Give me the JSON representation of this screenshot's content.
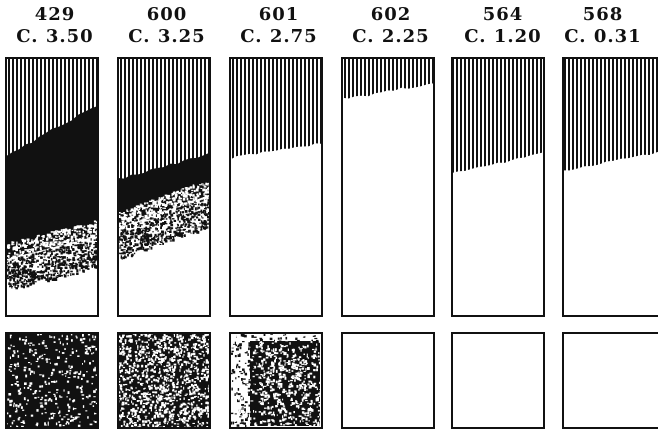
{
  "figure": {
    "colors": {
      "ink": "#111111",
      "paper": "#ffffff"
    },
    "columns": [
      {
        "number": "429",
        "code": "C. 3.50",
        "stripe_left": 0.38,
        "stripe_right": 0.18,
        "speckle_left": 0.78,
        "speckle_right": 0.69,
        "lower_box": "dark-speckled"
      },
      {
        "number": "600",
        "code": "C. 3.25",
        "stripe_left": 0.47,
        "stripe_right": 0.37,
        "speckle_left": 0.66,
        "speckle_right": 0.53,
        "lower_box": "speckled"
      },
      {
        "number": "601",
        "code": "C. 2.75",
        "stripe_left": 0.39,
        "stripe_right": 0.33,
        "speckle_left": null,
        "speckle_right": null,
        "lower_box": "light-speckled"
      },
      {
        "number": "602",
        "code": "C. 2.25",
        "stripe_left": 0.16,
        "stripe_right": 0.1,
        "speckle_left": null,
        "speckle_right": null,
        "lower_box": "empty"
      },
      {
        "number": "564",
        "code": "C. 1.20",
        "stripe_left": 0.45,
        "stripe_right": 0.37,
        "speckle_left": null,
        "speckle_right": null,
        "lower_box": "empty"
      },
      {
        "number": "568",
        "code": "C. 0.31",
        "stripe_left": 0.44,
        "stripe_right": 0.36,
        "speckle_left": null,
        "speckle_right": null,
        "lower_box": "empty"
      }
    ]
  }
}
